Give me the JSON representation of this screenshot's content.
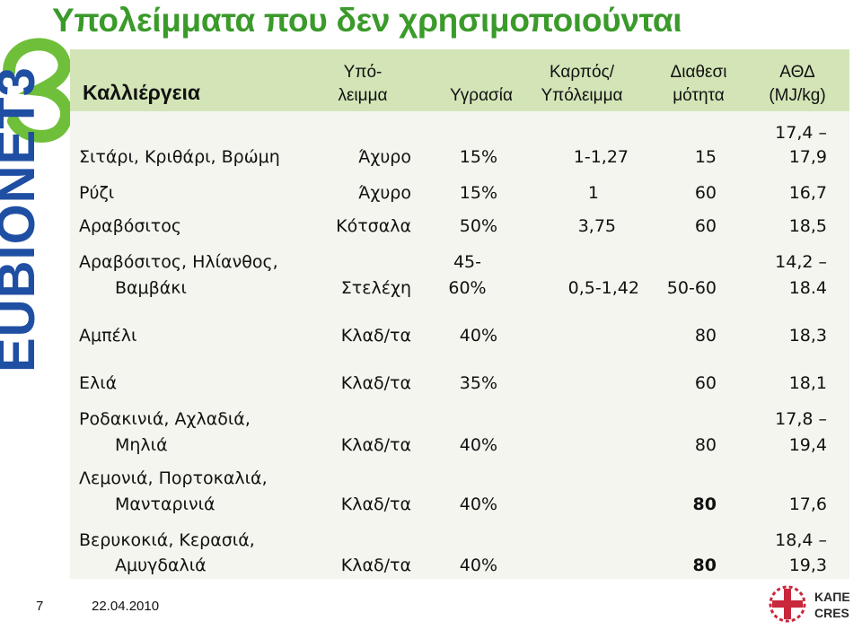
{
  "slide": {
    "title": "Υπολείμματα που δεν χρησιμοποιούνται",
    "slide_number": "7",
    "date": "22.04.2010",
    "logo_left_text": "EUBIONET3",
    "logo_right_text_1": "ΚΑΠΕ",
    "logo_right_text_2": "CRES"
  },
  "table": {
    "headers": {
      "crop": "Καλλιέργεια",
      "residue_1": "Υπό-",
      "residue_2": "λειμμα",
      "moisture": "Υγρασία",
      "ratio_1": "Καρπός/",
      "ratio_2": "Υπόλειμμα",
      "availability_1": "Διαθεσι",
      "availability_2": "μότητα",
      "lhv_1": "ΑΘΔ",
      "lhv_2": "(MJ/kg)"
    },
    "rows": [
      {
        "crop": [
          "Σιτάρι, Κριθάρι, Βρώμη"
        ],
        "residue": [
          "Άχυρο"
        ],
        "moisture": [
          "15%"
        ],
        "ratio": "1-1,27",
        "availability": "15",
        "lhv": [
          "17,4 –",
          "17,9"
        ]
      },
      {
        "crop": [
          "Ρύζι"
        ],
        "residue": [
          "Άχυρο"
        ],
        "moisture": [
          "15%"
        ],
        "ratio": "1",
        "availability": "60",
        "lhv": [
          "16,7"
        ]
      },
      {
        "crop": [
          "Αραβόσιτος"
        ],
        "residue": [
          "Κότσαλα"
        ],
        "moisture": [
          "50%"
        ],
        "ratio": "3,75",
        "availability": "60",
        "lhv": [
          "18,5"
        ]
      },
      {
        "crop": [
          "Αραβόσιτος, Ηλίανθος,",
          "Βαμβάκι"
        ],
        "residue": [
          "Στελέχη"
        ],
        "moisture": [
          "45-",
          "60%"
        ],
        "ratio": "0,5-1,42",
        "availability": "50-60",
        "lhv": [
          "14,2 –",
          "18.4"
        ]
      },
      {
        "crop": [
          "Αμπέλι"
        ],
        "residue": [
          "Κλαδ/τα"
        ],
        "moisture": [
          "40%"
        ],
        "ratio": "",
        "availability": "80",
        "lhv": [
          "18,3"
        ]
      },
      {
        "crop": [
          "Ελιά"
        ],
        "residue": [
          "Κλαδ/τα"
        ],
        "moisture": [
          "35%"
        ],
        "ratio": "",
        "availability": "60",
        "lhv": [
          "18,1"
        ]
      },
      {
        "crop": [
          "Ροδακινιά, Αχλαδιά,",
          "Μηλιά"
        ],
        "residue": [
          "Κλαδ/τα"
        ],
        "moisture": [
          "40%"
        ],
        "ratio": "",
        "availability": "80",
        "lhv": [
          "17,8 –",
          "19,4"
        ]
      },
      {
        "crop": [
          "Λεμονιά, Πορτοκαλιά,",
          "Μανταρινιά"
        ],
        "residue": [
          "Κλαδ/τα"
        ],
        "moisture": [
          "40%"
        ],
        "ratio": "",
        "availability": "80",
        "lhv": [
          "17,6"
        ]
      },
      {
        "crop": [
          "Βερυκοκιά, Κερασιά,",
          "Αμυγδαλιά"
        ],
        "residue": [
          "Κλαδ/τα"
        ],
        "moisture": [
          "40%"
        ],
        "ratio": "",
        "availability": "80",
        "lhv": [
          "18,4 –",
          "19,3"
        ]
      }
    ]
  },
  "colors": {
    "title": "#3a9a2a",
    "header_band": "#d3e5b7",
    "table_bg": "#f4f5ee",
    "logo_green": "#6fbf3a",
    "logo_blue": "#1f4fa3",
    "kape_red": "#c8283c"
  }
}
